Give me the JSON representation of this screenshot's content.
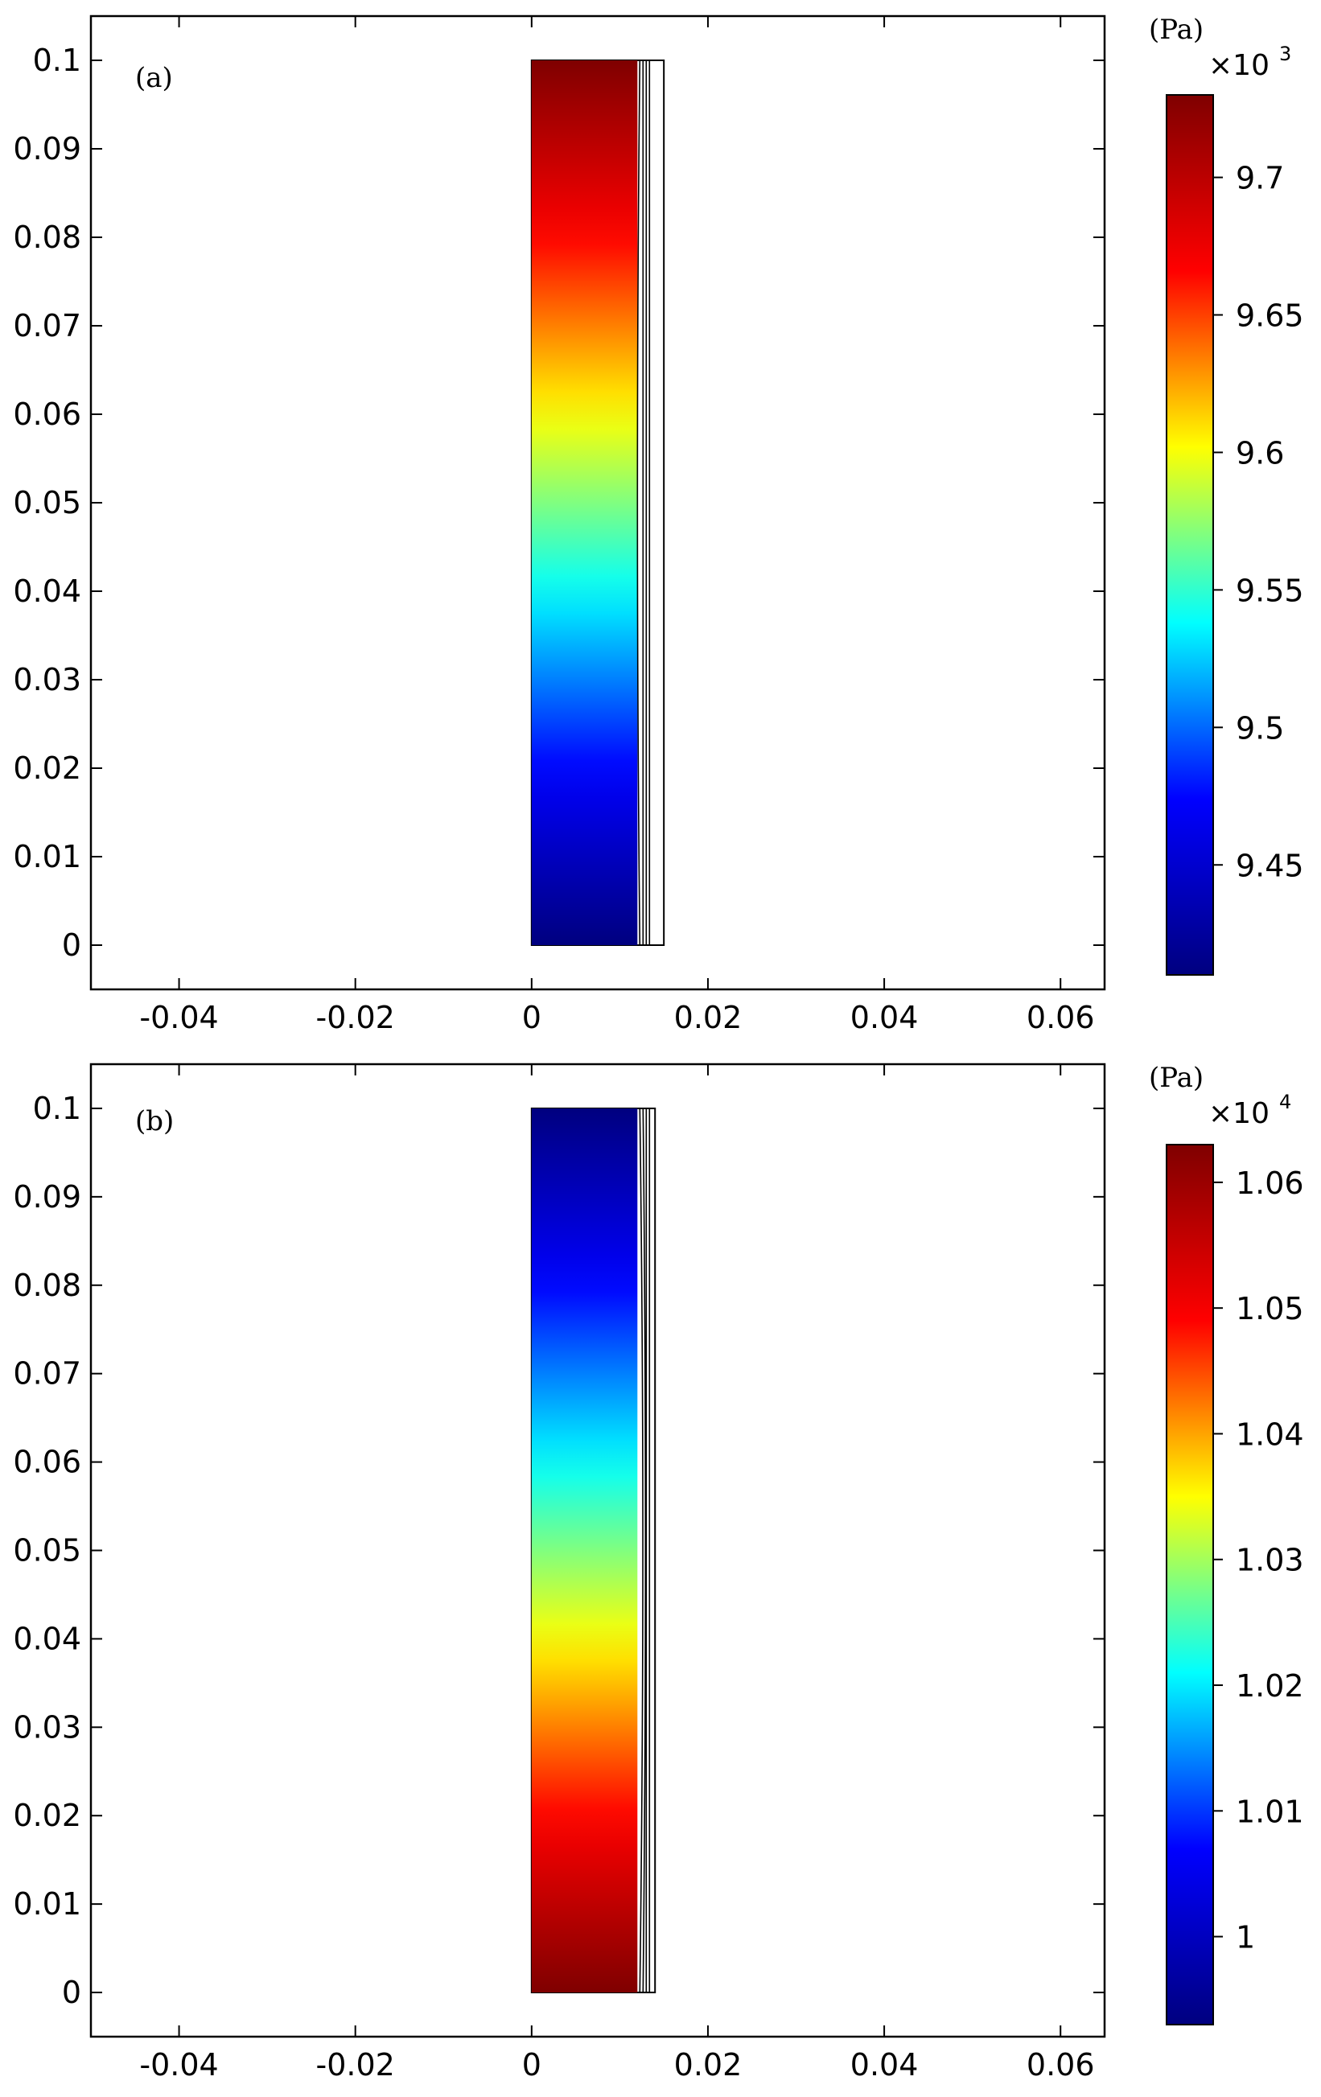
{
  "chart_data": [
    {
      "type": "heatmap",
      "panel_label": "(a)",
      "xlim": [
        -0.05,
        0.065
      ],
      "ylim": [
        -0.005,
        0.105
      ],
      "x_ticks": [
        -0.04,
        -0.02,
        0,
        0.02,
        0.04,
        0.06
      ],
      "x_tick_labels": [
        "-0.04",
        "-0.02",
        "0",
        "0.02",
        "0.04",
        "0.06"
      ],
      "y_ticks": [
        0,
        0.01,
        0.02,
        0.03,
        0.04,
        0.05,
        0.06,
        0.07,
        0.08,
        0.09,
        0.1
      ],
      "y_tick_labels": [
        "0",
        "0.01",
        "0.02",
        "0.03",
        "0.04",
        "0.05",
        "0.06",
        "0.07",
        "0.08",
        "0.09",
        "0.1"
      ],
      "domain": {
        "x_min": 0,
        "x_max": 0.015,
        "y_min": 0,
        "y_max": 0.1,
        "fluid_x_max": 0.012
      },
      "field": {
        "value_at_bottom": 9.41,
        "value_at_top": 9.73,
        "multiplier": "×10",
        "exponent": "3"
      },
      "colorbar": {
        "unit": "(Pa)",
        "min": 9.41,
        "max": 9.73,
        "ticks": [
          9.45,
          9.5,
          9.55,
          9.6,
          9.65,
          9.7
        ],
        "tick_labels": [
          "9.45",
          "9.5",
          "9.55",
          "9.6",
          "9.65",
          "9.7"
        ]
      },
      "colormap": [
        "#00007f",
        "#0000ff",
        "#00ffff",
        "#ffff00",
        "#ff0000",
        "#7f0000"
      ]
    },
    {
      "type": "heatmap",
      "panel_label": "(b)",
      "xlim": [
        -0.05,
        0.065
      ],
      "ylim": [
        -0.005,
        0.105
      ],
      "x_ticks": [
        -0.04,
        -0.02,
        0,
        0.02,
        0.04,
        0.06
      ],
      "x_tick_labels": [
        "-0.04",
        "-0.02",
        "0",
        "0.02",
        "0.04",
        "0.06"
      ],
      "y_ticks": [
        0,
        0.01,
        0.02,
        0.03,
        0.04,
        0.05,
        0.06,
        0.07,
        0.08,
        0.09,
        0.1
      ],
      "y_tick_labels": [
        "0",
        "0.01",
        "0.02",
        "0.03",
        "0.04",
        "0.05",
        "0.06",
        "0.07",
        "0.08",
        "0.09",
        "0.1"
      ],
      "domain": {
        "x_min": 0,
        "x_max": 0.014,
        "y_min": 0,
        "y_max": 0.1,
        "fluid_x_max": 0.012
      },
      "field": {
        "value_at_bottom": 1.063,
        "value_at_top": 0.993,
        "multiplier": "×10",
        "exponent": "4"
      },
      "colorbar": {
        "unit": "(Pa)",
        "min": 0.993,
        "max": 1.063,
        "ticks": [
          1,
          1.01,
          1.02,
          1.03,
          1.04,
          1.05,
          1.06
        ],
        "tick_labels": [
          "1",
          "1.01",
          "1.02",
          "1.03",
          "1.04",
          "1.05",
          "1.06"
        ]
      },
      "colormap": [
        "#00007f",
        "#0000ff",
        "#00ffff",
        "#ffff00",
        "#ff0000",
        "#7f0000"
      ]
    }
  ]
}
